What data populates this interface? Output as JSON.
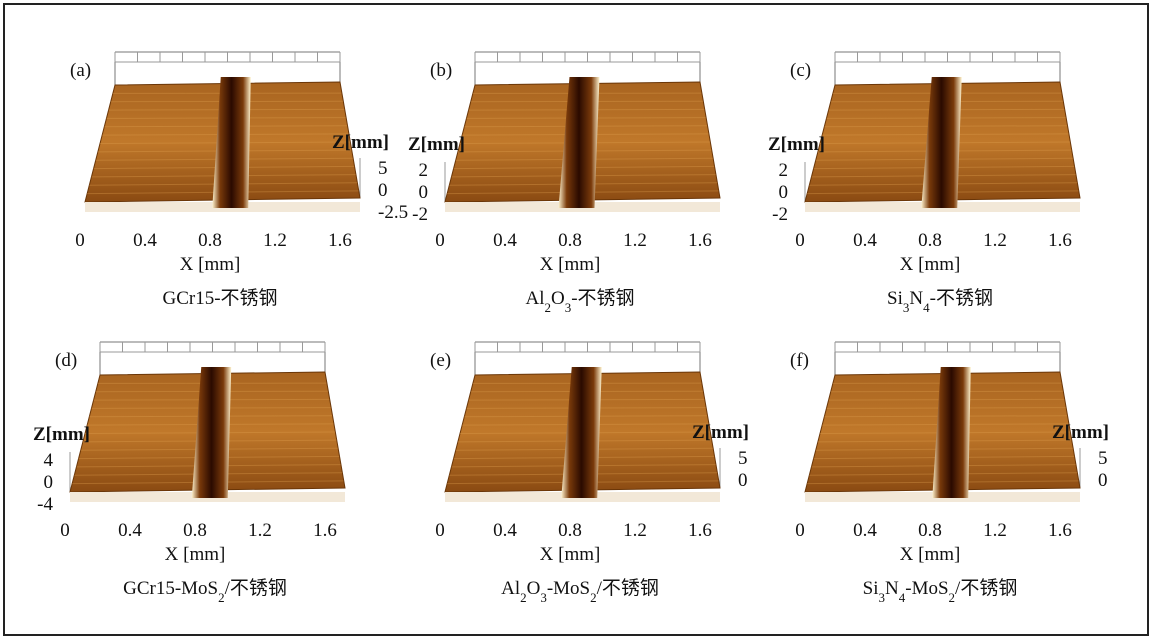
{
  "panels": [
    {
      "letter": "(a)",
      "z_label": "Z[mm]",
      "zticks": [
        5,
        0,
        -2.5
      ],
      "xticks": [
        0,
        0.4,
        0.8,
        1.2,
        1.6
      ],
      "x_label": "X [mm]",
      "caption": [
        {
          "text": "GCr15-不锈钢",
          "sub": false
        }
      ]
    },
    {
      "letter": "(b)",
      "z_label": "Z[mm]",
      "zticks": [
        2,
        0,
        -2
      ],
      "xticks": [
        0,
        0.4,
        0.8,
        1.2,
        1.6
      ],
      "x_label": "X [mm]",
      "caption": [
        {
          "text": "Al",
          "sub": false
        },
        {
          "text": "2",
          "sub": true
        },
        {
          "text": "O",
          "sub": false
        },
        {
          "text": "3",
          "sub": true
        },
        {
          "text": "-不锈钢",
          "sub": false
        }
      ]
    },
    {
      "letter": "(c)",
      "z_label": "Z[mm]",
      "zticks": [
        2,
        0,
        -2
      ],
      "xticks": [
        0,
        0.4,
        0.8,
        1.2,
        1.6
      ],
      "x_label": "X [mm]",
      "caption": [
        {
          "text": "Si",
          "sub": false
        },
        {
          "text": "3",
          "sub": true
        },
        {
          "text": "N",
          "sub": false
        },
        {
          "text": "4",
          "sub": true
        },
        {
          "text": "-不锈钢",
          "sub": false
        }
      ]
    },
    {
      "letter": "(d)",
      "z_label": "Z[mm]",
      "zticks": [
        4,
        0,
        -4
      ],
      "xticks": [
        0,
        0.4,
        0.8,
        1.2,
        1.6
      ],
      "x_label": "X [mm]",
      "caption": [
        {
          "text": "GCr15-MoS",
          "sub": false
        },
        {
          "text": "2",
          "sub": true
        },
        {
          "text": "/不锈钢",
          "sub": false
        }
      ]
    },
    {
      "letter": "(e)",
      "z_label": "Z[mm]",
      "zticks": [
        5,
        0
      ],
      "xticks": [
        0,
        0.4,
        0.8,
        1.2,
        1.6
      ],
      "x_label": "X [mm]",
      "caption": [
        {
          "text": "Al",
          "sub": false
        },
        {
          "text": "2",
          "sub": true
        },
        {
          "text": "O",
          "sub": false
        },
        {
          "text": "3",
          "sub": true
        },
        {
          "text": "-MoS",
          "sub": false
        },
        {
          "text": "2",
          "sub": true
        },
        {
          "text": "/不锈钢",
          "sub": false
        }
      ]
    },
    {
      "letter": "(f)",
      "z_label": "Z[mm]",
      "zticks": [
        5,
        0
      ],
      "xticks": [
        0,
        0.4,
        0.8,
        1.2,
        1.6
      ],
      "x_label": "X [mm]",
      "caption": [
        {
          "text": "Si",
          "sub": false
        },
        {
          "text": "3",
          "sub": true
        },
        {
          "text": "N",
          "sub": false
        },
        {
          "text": "4",
          "sub": true
        },
        {
          "text": "-MoS",
          "sub": false
        },
        {
          "text": "2",
          "sub": true
        },
        {
          "text": "/不锈钢",
          "sub": false
        }
      ]
    }
  ]
}
